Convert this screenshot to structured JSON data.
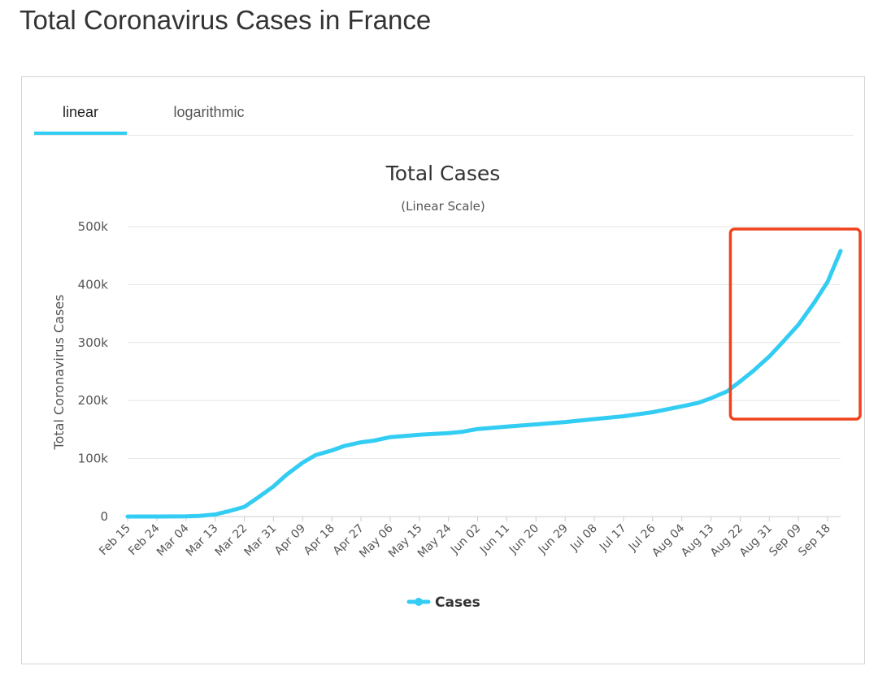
{
  "page_title": "Total Coronavirus Cases in France",
  "tabs": [
    {
      "label": "linear",
      "active": true
    },
    {
      "label": "logarithmic",
      "active": false
    }
  ],
  "colors": {
    "series": "#33ccf3",
    "highlight_box": "#f0421c",
    "grid": "#e6e6e6",
    "tab_underline": "#33ccf3"
  },
  "chart_data": {
    "type": "line",
    "title": "Total Cases",
    "subtitle": "(Linear Scale)",
    "xlabel": "",
    "ylabel": "Total Coronavirus Cases",
    "ylim": [
      0,
      500000
    ],
    "y_ticks": [
      0,
      100000,
      200000,
      300000,
      400000,
      500000
    ],
    "y_tick_labels": [
      "0",
      "100k",
      "200k",
      "300k",
      "400k",
      "500k"
    ],
    "x_tick_labels": [
      "Feb 15",
      "Feb 24",
      "Mar 04",
      "Mar 13",
      "Mar 22",
      "Mar 31",
      "Apr 09",
      "Apr 18",
      "Apr 27",
      "May 06",
      "May 15",
      "May 24",
      "Jun 02",
      "Jun 11",
      "Jun 20",
      "Jun 29",
      "Jul 08",
      "Jul 17",
      "Jul 26",
      "Aug 04",
      "Aug 13",
      "Aug 22",
      "Aug 31",
      "Sep 09",
      "Sep 18"
    ],
    "x_range": [
      "Feb 15",
      "Sep 22"
    ],
    "grid": true,
    "legend_position": "bottom-center",
    "series": [
      {
        "name": "Cases",
        "x": [
          "Feb 15",
          "Feb 24",
          "Mar 04",
          "Mar 08",
          "Mar 13",
          "Mar 17",
          "Mar 22",
          "Mar 26",
          "Mar 31",
          "Apr 04",
          "Apr 09",
          "Apr 13",
          "Apr 18",
          "Apr 22",
          "Apr 27",
          "May 01",
          "May 06",
          "May 15",
          "May 24",
          "May 28",
          "Jun 02",
          "Jun 11",
          "Jun 20",
          "Jun 29",
          "Jul 08",
          "Jul 17",
          "Jul 26",
          "Aug 04",
          "Aug 09",
          "Aug 13",
          "Aug 18",
          "Aug 22",
          "Aug 26",
          "Aug 31",
          "Sep 04",
          "Sep 09",
          "Sep 14",
          "Sep 18",
          "Sep 22"
        ],
        "y": [
          12,
          12,
          285,
          1000,
          3700,
          9000,
          16700,
          32000,
          52000,
          72000,
          93000,
          106000,
          114000,
          122000,
          128000,
          131000,
          137000,
          141000,
          144000,
          146000,
          151000,
          155000,
          159000,
          163000,
          168000,
          173000,
          180000,
          190000,
          196000,
          204000,
          216000,
          233000,
          251000,
          276000,
          300000,
          331000,
          370000,
          405000,
          458000
        ]
      }
    ],
    "highlight_range": [
      "Aug 22",
      "Sep 22"
    ]
  }
}
